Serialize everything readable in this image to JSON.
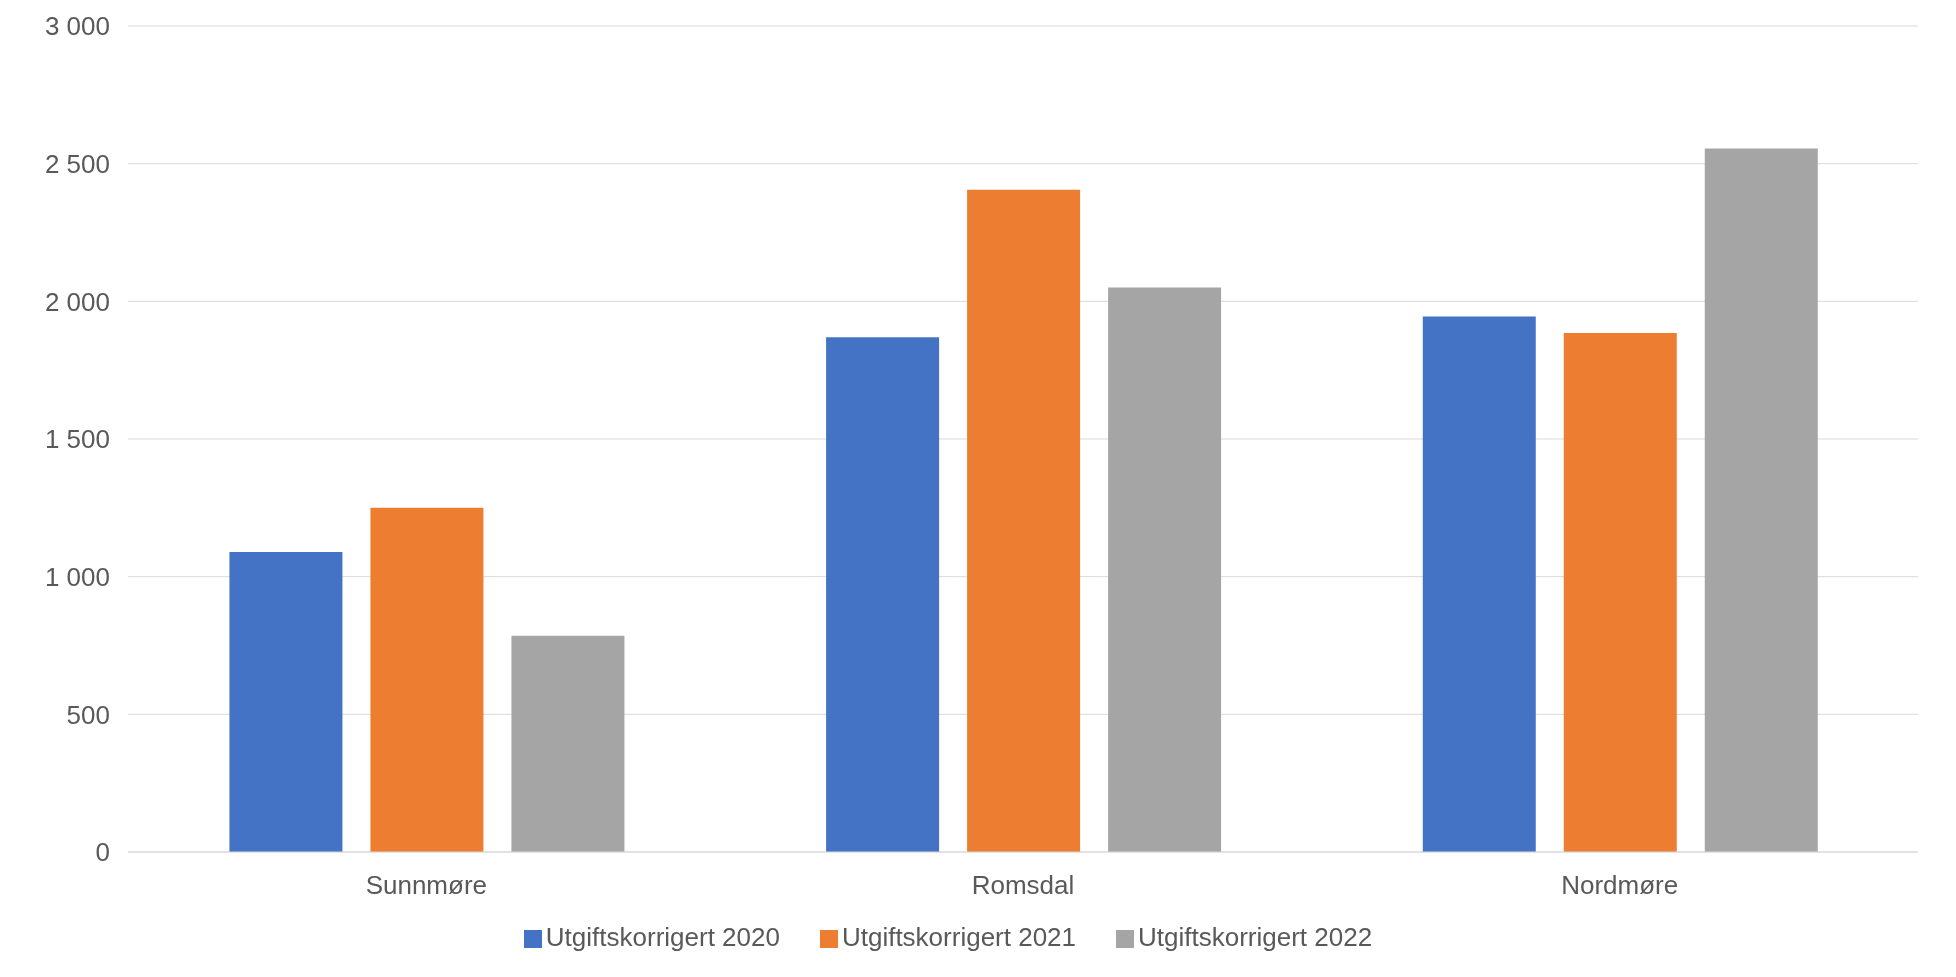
{
  "chart_data": {
    "type": "bar",
    "categories": [
      "Sunnmøre",
      "Romsdal",
      "Nordmøre"
    ],
    "series": [
      {
        "name": "Utgiftskorrigert 2020",
        "color": "#4472c4",
        "values": [
          1090,
          1870,
          1945
        ]
      },
      {
        "name": "Utgiftskorrigert 2021",
        "color": "#ed7d31",
        "values": [
          1250,
          2405,
          1885
        ]
      },
      {
        "name": "Utgiftskorrigert 2022",
        "color": "#a5a5a5",
        "values": [
          785,
          2050,
          2555
        ]
      }
    ],
    "ylim": [
      0,
      3000
    ],
    "yticks": [
      0,
      500,
      {
        "value": 1000,
        "label": "1 000"
      },
      {
        "value": 1500,
        "label": "1 500"
      },
      {
        "value": 2000,
        "label": "2 000"
      },
      {
        "value": 2500,
        "label": "2 500"
      },
      {
        "value": 3000,
        "label": "3 000"
      }
    ],
    "grid": "y",
    "legend": "bottom"
  }
}
